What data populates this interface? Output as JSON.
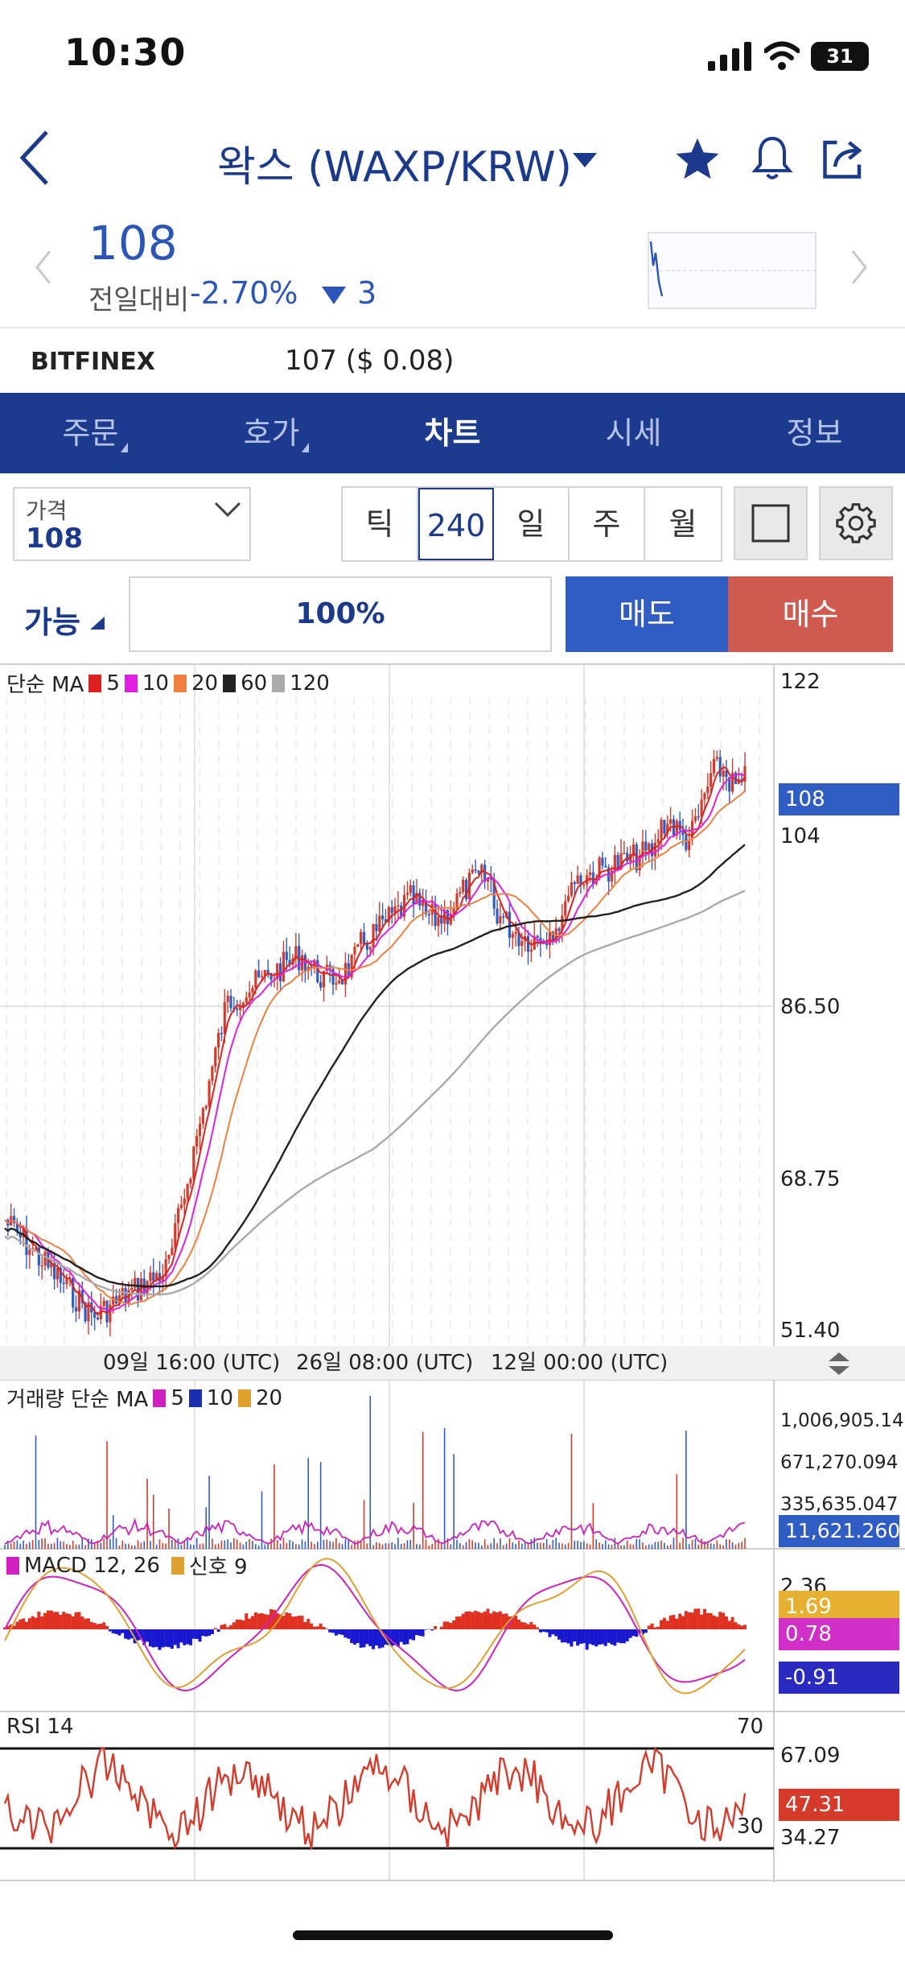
{
  "status_bar": {
    "time": "10:30",
    "battery": "31"
  },
  "header": {
    "title": "왁스 (WAXP/KRW)"
  },
  "ticker": {
    "price": "108",
    "change_label": "전일대비",
    "change_pct": "-2.70%",
    "change_amt": "3"
  },
  "exchange": {
    "name": "BITFINEX",
    "value": "107 ($ 0.08)"
  },
  "tabs": [
    {
      "label": "주문"
    },
    {
      "label": "호가"
    },
    {
      "label": "차트"
    },
    {
      "label": "시세"
    },
    {
      "label": "정보"
    }
  ],
  "controls": {
    "price_label": "가격",
    "price_value": "108",
    "intervals": [
      "틱",
      "240",
      "일",
      "주",
      "월"
    ],
    "selected_interval": "240",
    "available_label": "가능",
    "percent": "100%",
    "sell_label": "매도",
    "buy_label": "매수"
  },
  "colors": {
    "brand": "#1c3b8e",
    "up": "#d63a2b",
    "down": "#2f5dc4",
    "sell": "#2f5dc4",
    "buy": "#cf5a50"
  },
  "chart": {
    "ma_legend": {
      "title": "단순 MA",
      "items": [
        {
          "label": "5",
          "color": "#e02020"
        },
        {
          "label": "10",
          "color": "#e020e0"
        },
        {
          "label": "20",
          "color": "#f08040"
        },
        {
          "label": "60",
          "color": "#222222"
        },
        {
          "label": "120",
          "color": "#aaaaaa"
        }
      ]
    },
    "price_axis": [
      "122",
      "104",
      "86.50",
      "68.75",
      "51.40"
    ],
    "current_price_tag": "108",
    "time_labels": [
      "09일 16:00 (UTC)",
      "26일 08:00 (UTC)",
      "12일 00:00 (UTC)"
    ],
    "volume_legend": {
      "title": "거래량 단순 MA",
      "items": [
        {
          "label": "5",
          "color": "#d020c0"
        },
        {
          "label": "10",
          "color": "#1a2fb0"
        },
        {
          "label": "20",
          "color": "#e0a030"
        }
      ]
    },
    "volume_axis": [
      "1,006,905.141",
      "671,270.094",
      "335,635.047"
    ],
    "volume_tag": "11,621.260",
    "macd_legend": {
      "title": "MACD 12, 26",
      "signal": "신호 9",
      "macd_color": "#d020c0",
      "signal_color": "#e0a030"
    },
    "macd_axis": [
      "2.36"
    ],
    "macd_tags": [
      {
        "value": "1.69",
        "color": "#e6b030"
      },
      {
        "value": "0.78",
        "color": "#d030c8"
      },
      {
        "value": "-0.91",
        "color": "#2a2ac0"
      }
    ],
    "rsi_legend": "RSI 14",
    "rsi_levels": [
      "70",
      "30"
    ],
    "rsi_axis": [
      "67.09",
      "34.27"
    ],
    "rsi_tag": "47.31"
  }
}
